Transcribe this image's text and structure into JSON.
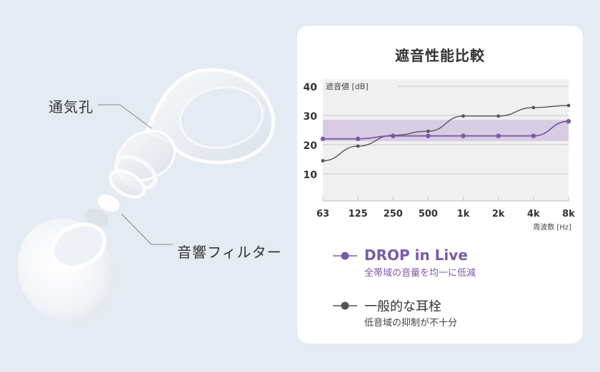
{
  "callouts": {
    "vent": "通気孔",
    "filter": "音響フィルター"
  },
  "card": {
    "title": "遮音性能比較"
  },
  "colors": {
    "background": "#e4ebf2",
    "card": "#ffffff",
    "plot_bg": "#f0f0f0",
    "band": "#d4c8e2",
    "drop_line": "#7a5aa8",
    "generic_line": "#555555",
    "grid": "#c8c8c8"
  },
  "legend": [
    {
      "name": "DROP in Live",
      "description": "全帯域の音量を均一に低減",
      "color": "#7a5aa8"
    },
    {
      "name": "一般的な耳栓",
      "description": "低音域の抑制が不十分",
      "color": "#555555"
    }
  ],
  "chart_data": {
    "type": "line",
    "title": "遮音性能比較",
    "xlabel": "周波数 [Hz]",
    "ylabel": "遮音値 [dB]",
    "categories": [
      "63",
      "125",
      "250",
      "500",
      "1k",
      "2k",
      "4k",
      "8k"
    ],
    "yticks": [
      10,
      20,
      30,
      40
    ],
    "ylim": [
      0.5,
      40
    ],
    "grid": true,
    "legend_position": "bottom",
    "series": [
      {
        "name": "DROP in Live",
        "values": [
          22,
          22,
          23,
          23,
          23,
          23,
          23,
          28
        ],
        "color": "#7a5aa8"
      },
      {
        "name": "一般的な耳栓",
        "values": [
          14.5,
          19.5,
          23.2,
          24.6,
          29.8,
          29.8,
          32.7,
          33.4
        ],
        "color": "#555555"
      }
    ],
    "annotations": [
      {
        "type": "band",
        "from": 21.2,
        "to": 28.5,
        "color": "#d4c8e2",
        "label": ""
      }
    ]
  }
}
